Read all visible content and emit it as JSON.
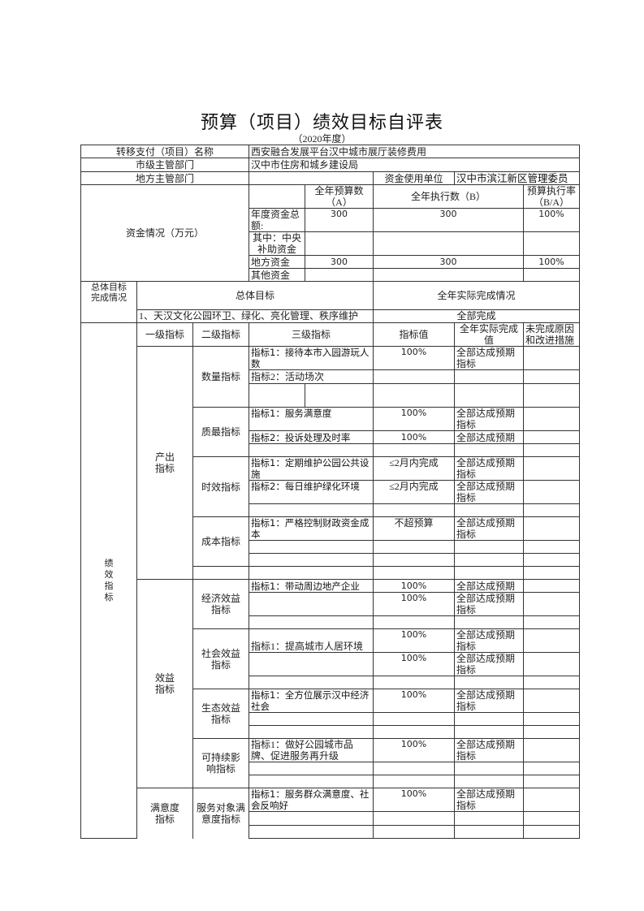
{
  "title": "预算（项目）绩效目标自评表",
  "subtitle": "（2020年度）",
  "info": {
    "project_label": "转移支付（项目）名称",
    "project_value": "西安融合发展平台汉中城市展厅装修费用",
    "city_dept_label": "市级主管部门",
    "city_dept_value": "汉中市住房和城乡建设局",
    "local_dept_label": "地方主管部门",
    "local_dept_value": "",
    "fund_user_label": "资金使用单位",
    "fund_user_value": "汉中市滨江新区管理委员"
  },
  "funds": {
    "label": "资金情况（万元）",
    "col_a": "全年预算数（A）",
    "col_b": "全年执行数（B）",
    "col_rate": "预算执行率（B/A）",
    "rows": [
      {
        "label": "年度资金总额:",
        "a": "300",
        "b": "300",
        "rate": "100%"
      },
      {
        "label": "其中：中央补助资金",
        "a": "",
        "b": "",
        "rate": ""
      },
      {
        "label": "地方资金",
        "a": "300",
        "b": "300",
        "rate": "100%"
      },
      {
        "label": "其他资金",
        "a": "",
        "b": "",
        "rate": ""
      }
    ]
  },
  "overall": {
    "label": "总体目标完成情况",
    "goal_header": "总体目标",
    "actual_header": "全年实际完成情况",
    "goal": "1、天汉文化公园环卫、绿化、亮化管理、秩序维护",
    "actual": "全部完成"
  },
  "indicators": {
    "section_label": "绩效指标",
    "headers": [
      "一级指标",
      "二级指标",
      "三级指标",
      "指标值",
      "全年实际完成值",
      "未完成原因和改进措施"
    ],
    "output": {
      "label": "产出指标",
      "quantity": {
        "label": "数量指标",
        "rows": [
          {
            "name": "指标1：接待本市入园游玩人数",
            "value": "100%",
            "actual": "全部达成预期指标"
          },
          {
            "name": "指标2：活动场次",
            "value": "",
            "actual": ""
          }
        ]
      },
      "quality": {
        "label": "质最指标",
        "rows": [
          {
            "name": "指标1：服务满意度",
            "value": "100%",
            "actual": "全部达成预期指标"
          },
          {
            "name": "指标2：投诉处理及时率",
            "value": "100%",
            "actual": "全部达成预期"
          }
        ]
      },
      "timeliness": {
        "label": "时效指标",
        "rows": [
          {
            "name": "指标1：定期维护公园公共设施",
            "value": "≤2月内完成",
            "actual": "全部达成预期指标"
          },
          {
            "name": "指标2：每日维护绿化环境",
            "value": "≤2月内完成",
            "actual": "全部达成预期指标"
          }
        ]
      },
      "cost": {
        "label": "成本指标",
        "rows": [
          {
            "name": "指标1：严格控制财政资金成本",
            "value": "不超预算",
            "actual": "全部达成预期指标"
          }
        ]
      }
    },
    "benefit": {
      "label": "效益指标",
      "economic": {
        "label": "经济效益指标",
        "rows": [
          {
            "name": "指标1：带动周边地产企业",
            "value": "100%",
            "actual": "全部达成预期"
          },
          {
            "name": "",
            "value": "100%",
            "actual": "全部达成预期指标"
          }
        ]
      },
      "social": {
        "label": "社会效益指标",
        "rows": [
          {
            "name": "指标1：提高城市人居环境",
            "value": "100%",
            "actual": "全部达成预期指标"
          },
          {
            "name": "",
            "value": "100%",
            "actual": "全部达成预期指标"
          }
        ]
      },
      "ecological": {
        "label": "生态效益指标",
        "rows": [
          {
            "name": "指标1：全方位展示汉中经济社会",
            "value": "100%",
            "actual": "全部达成预期指标"
          }
        ]
      },
      "sustainable": {
        "label": "可持续影响指标",
        "rows": [
          {
            "name": "指标1：做好公园城市品牌、促进服务再升级",
            "value": "100%",
            "actual": "全部达成预期指标"
          }
        ]
      }
    },
    "satisfaction": {
      "label": "满意度指标",
      "service": {
        "label": "服务对象满意度指标",
        "rows": [
          {
            "name": "指标1：服务群众满意度、社会反响好",
            "value": "100%",
            "actual": "全部达成预期指标"
          }
        ]
      }
    }
  }
}
